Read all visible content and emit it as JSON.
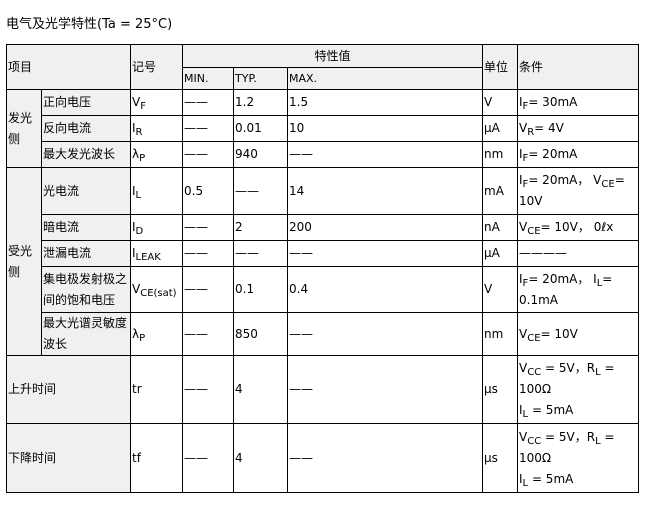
{
  "title": "电气及光学特性(Ta = 25°C)",
  "header": {
    "item": "项目",
    "symbol": "记号",
    "values": "特性值",
    "min": "MIN.",
    "typ": "TYP.",
    "max": "MAX.",
    "unit": "单位",
    "condition": "条件"
  },
  "groups": {
    "emit": "发光侧",
    "receive": "受光侧"
  },
  "rows": [
    {
      "name": "正向电压",
      "sym": "V",
      "sub": "F",
      "min": "——",
      "typ": "1.2",
      "max": "1.5",
      "unit": "V",
      "cond": [
        {
          "t": "I"
        },
        {
          "s": "F"
        },
        {
          "t": "= 30mA"
        }
      ]
    },
    {
      "name": "反向电流",
      "sym": "I",
      "sub": "R",
      "min": "——",
      "typ": "0.01",
      "max": "10",
      "unit": "μA",
      "cond": [
        {
          "t": "V"
        },
        {
          "s": "R"
        },
        {
          "t": "= 4V"
        }
      ]
    },
    {
      "name": "最大发光波长",
      "sym": "λ",
      "sub": "P",
      "min": "——",
      "typ": "940",
      "max": "——",
      "unit": "nm",
      "cond": [
        {
          "t": "I"
        },
        {
          "s": "F"
        },
        {
          "t": "= 20mA"
        }
      ]
    },
    {
      "name": "光电流",
      "sym": "I",
      "sub": "L",
      "min": "0.5",
      "typ": "——",
      "max": "14",
      "unit": "mA",
      "cond": [
        {
          "t": "I"
        },
        {
          "s": "F"
        },
        {
          "t": "= 20mA，  V"
        },
        {
          "s": "CE"
        },
        {
          "t": "= 10V"
        }
      ]
    },
    {
      "name": "暗电流",
      "sym": "I",
      "sub": "D",
      "min": "——",
      "typ": "2",
      "max": "200",
      "unit": "nA",
      "cond": [
        {
          "t": "V"
        },
        {
          "s": "CE"
        },
        {
          "t": "= 10V，  0ℓx"
        }
      ]
    },
    {
      "name": "泄漏电流",
      "sym": "I",
      "sub": "LEAK",
      "min": "——",
      "typ": "——",
      "max": "——",
      "unit": "μA",
      "cond": [
        {
          "t": "————"
        }
      ]
    },
    {
      "name": "集电极发射极之间的饱和电压",
      "sym": "V",
      "sub": "CE(sat)",
      "min": "——",
      "typ": "0.1",
      "max": "0.4",
      "unit": "V",
      "cond": [
        {
          "t": "I"
        },
        {
          "s": "F"
        },
        {
          "t": "= 20mA，  I"
        },
        {
          "s": "L"
        },
        {
          "t": "= 0.1mA"
        }
      ]
    },
    {
      "name": "最大光谱灵敏度波长",
      "sym": "λ",
      "sub": "P",
      "min": "——",
      "typ": "850",
      "max": "——",
      "unit": "nm",
      "cond": [
        {
          "t": "V"
        },
        {
          "s": "CE"
        },
        {
          "t": "= 10V"
        }
      ]
    },
    {
      "name": "上升时间",
      "sym": "tr",
      "sub": "",
      "min": "——",
      "typ": "4",
      "max": "——",
      "unit": "μs",
      "cond": [
        {
          "t": "V"
        },
        {
          "s": "CC"
        },
        {
          "t": " = 5V，R"
        },
        {
          "s": "L"
        },
        {
          "t": " = 100Ω"
        },
        {
          "br": true
        },
        {
          "t": "I"
        },
        {
          "s": "L"
        },
        {
          "t": " = 5mA"
        }
      ]
    },
    {
      "name": "下降时间",
      "sym": "tf",
      "sub": "",
      "min": "——",
      "typ": "4",
      "max": "——",
      "unit": "μs",
      "cond": [
        {
          "t": "V"
        },
        {
          "s": "CC"
        },
        {
          "t": " = 5V，R"
        },
        {
          "s": "L"
        },
        {
          "t": " = 100Ω"
        },
        {
          "br": true
        },
        {
          "t": "I"
        },
        {
          "s": "L"
        },
        {
          "t": " = 5mA"
        }
      ]
    }
  ]
}
